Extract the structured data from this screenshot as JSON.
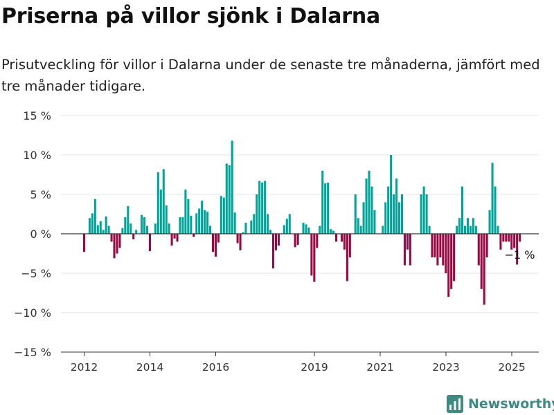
{
  "header": {
    "title": "Priserna på villor sjönk i Dalarna",
    "subtitle": "Prisutveckling för villor i Dalarna under de senaste tre månaderna, jämfört med tre månader tidigare."
  },
  "brand": {
    "name": "Newsworthy"
  },
  "colors": {
    "positive": "#00a499",
    "negative": "#970a43",
    "grid": "#e3e3e3",
    "logo": "#3d8a83"
  },
  "chart_data": {
    "type": "bar",
    "ylim": [
      -15,
      15
    ],
    "y_ticks": [
      15,
      10,
      5,
      0,
      -5,
      -10,
      -15
    ],
    "y_tick_labels": [
      "15 %",
      "10 %",
      "5 %",
      "0 %",
      "−5 %",
      "−10 %",
      "−15 %"
    ],
    "x_ticks": [
      2012,
      2014,
      2016,
      2019,
      2021,
      2023,
      2025
    ],
    "x_tick_labels": [
      "2012",
      "2014",
      "2016",
      "2019",
      "2021",
      "2023",
      "2025"
    ],
    "grid": true,
    "x_start": 2012.0,
    "x_step": 0.0833,
    "values": [
      -2.3,
      0,
      2.0,
      2.6,
      4.4,
      1.1,
      1.6,
      0.5,
      2.2,
      1.0,
      -1.0,
      -3.1,
      -2.5,
      -1.8,
      0.7,
      2.1,
      3.5,
      1.3,
      -0.7,
      0.5,
      0,
      2.4,
      2.1,
      1.0,
      -2.2,
      0,
      1.3,
      7.8,
      5.6,
      8.2,
      3.6,
      1.3,
      -1.5,
      -0.6,
      -1.0,
      2.1,
      2.1,
      5.6,
      4.4,
      2.3,
      -0.4,
      2.6,
      3.2,
      4.2,
      3.0,
      2.8,
      1.0,
      -2.3,
      -2.9,
      -1.1,
      4.8,
      4.6,
      8.9,
      8.7,
      11.8,
      2.7,
      -1.2,
      -2.1,
      0.2,
      1.4,
      0,
      1.7,
      2.5,
      5.0,
      6.7,
      6.5,
      6.7,
      2.5,
      0.5,
      -4.4,
      -2.1,
      -1.5,
      0,
      1.1,
      1.9,
      2.5,
      0,
      -1.7,
      -1.4,
      0,
      1.4,
      1.2,
      0.8,
      -5.3,
      -6.1,
      -1.8,
      1.0,
      8.0,
      6.4,
      6.5,
      0.6,
      0.4,
      -1.0,
      0,
      -1.0,
      -2.0,
      -6.0,
      -3.0,
      0,
      5.0,
      2.0,
      1.0,
      4.0,
      7.0,
      8.0,
      6.0,
      3.0,
      0,
      0,
      1.0,
      4.0,
      6.0,
      10.0,
      5.0,
      7.0,
      4.0,
      5.0,
      -4.0,
      -2.0,
      -4.0,
      0,
      0,
      0,
      5.0,
      6.0,
      5.0,
      1.0,
      -3.0,
      -3.0,
      -4.0,
      -3.0,
      -4.0,
      -5.0,
      -8.0,
      -7.0,
      -6.0,
      1.0,
      2.0,
      6.0,
      1.0,
      2.0,
      1.0,
      2.0,
      1.0,
      -4.0,
      -7.0,
      -9.0,
      -3.0,
      3.0,
      9.0,
      6.0,
      1.0,
      -2.0,
      -1.0,
      -1.0,
      -1.0,
      -2.0,
      -1.8,
      -3.9,
      -1.0
    ],
    "last_label": "−1 %"
  }
}
